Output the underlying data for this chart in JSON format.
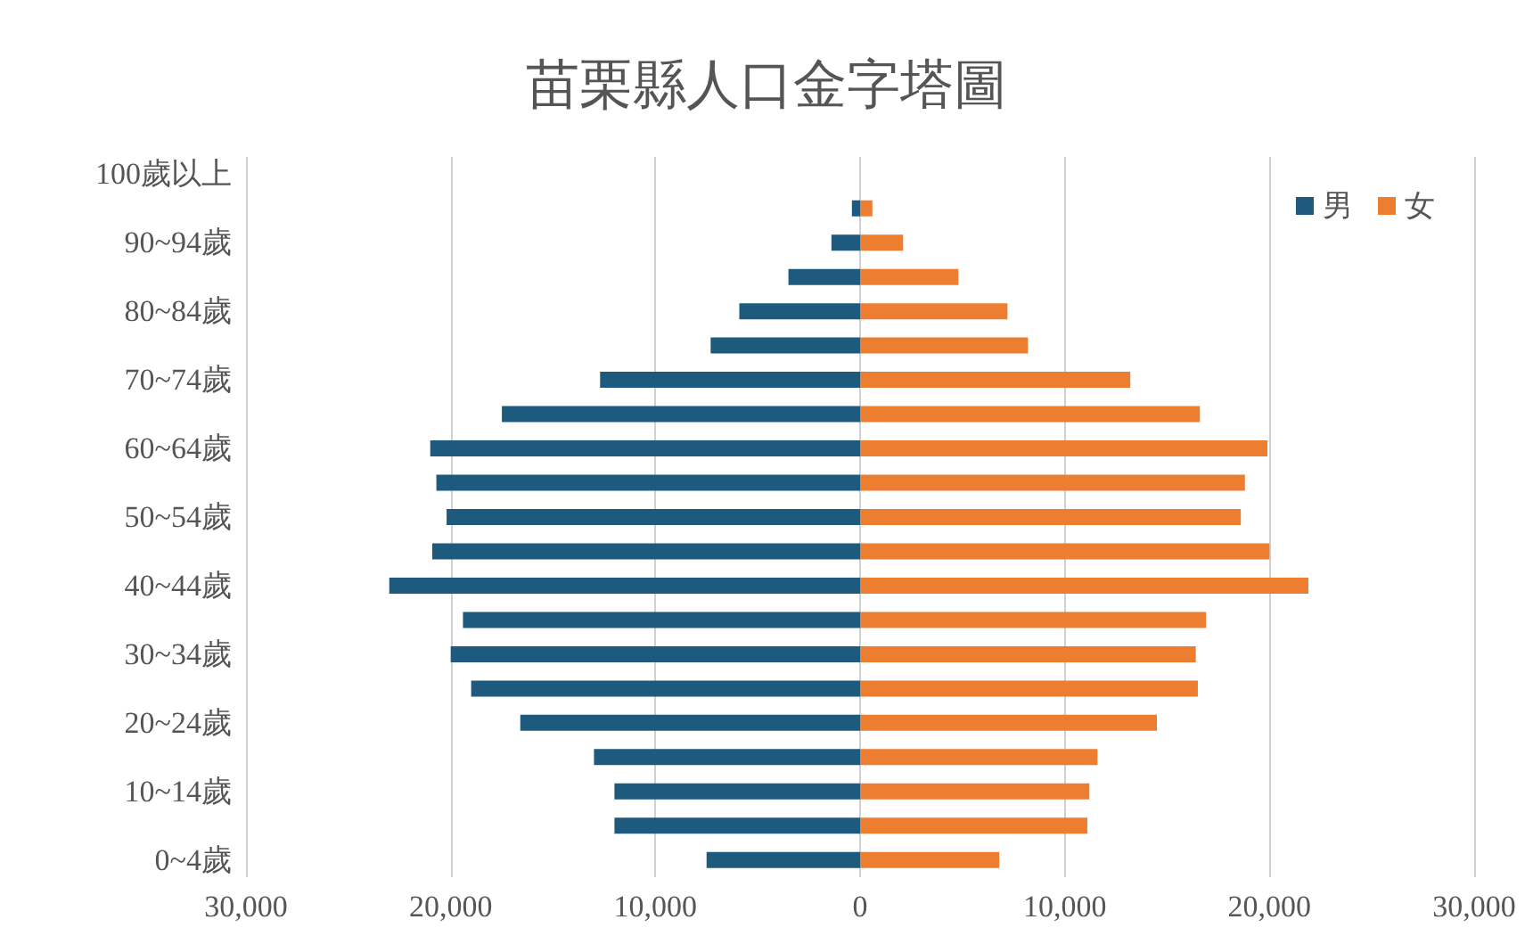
{
  "chart_data": {
    "type": "bar",
    "orientation": "horizontal",
    "title": "苗栗縣人口金字塔圖",
    "categories": [
      "100歲以上",
      null,
      "90~94歲",
      null,
      "80~84歲",
      null,
      "70~74歲",
      null,
      "60~64歲",
      null,
      "50~54歲",
      null,
      "40~44歲",
      null,
      "30~34歲",
      null,
      "20~24歲",
      null,
      "10~14歲",
      null,
      "0~4歲"
    ],
    "series": [
      {
        "name": "男",
        "color": "#1d5a7e",
        "values": [
          0,
          -400,
          -1400,
          -3500,
          -5900,
          -7300,
          -12700,
          -17500,
          -21000,
          -20700,
          -20200,
          -20900,
          -23000,
          -19400,
          -20000,
          -19000,
          -16600,
          -13000,
          -12000,
          -12000,
          -7500
        ]
      },
      {
        "name": "女",
        "color": "#ed7d31",
        "values": [
          0,
          600,
          2100,
          4800,
          7200,
          8200,
          13200,
          16600,
          19900,
          18800,
          18600,
          20000,
          21900,
          16900,
          16400,
          16500,
          14500,
          11600,
          11200,
          11100,
          6800
        ]
      }
    ],
    "xlim": [
      -30000,
      30000
    ],
    "xticks": [
      {
        "value": -30000,
        "label": "30,000"
      },
      {
        "value": -20000,
        "label": "20,000"
      },
      {
        "value": -10000,
        "label": "10,000"
      },
      0,
      {
        "value": 10000,
        "label": "10,000"
      },
      {
        "value": 20000,
        "label": "20,000"
      },
      {
        "value": 30000,
        "label": "30,000"
      }
    ],
    "grid": "x",
    "legend": "top right",
    "stacked": true
  }
}
